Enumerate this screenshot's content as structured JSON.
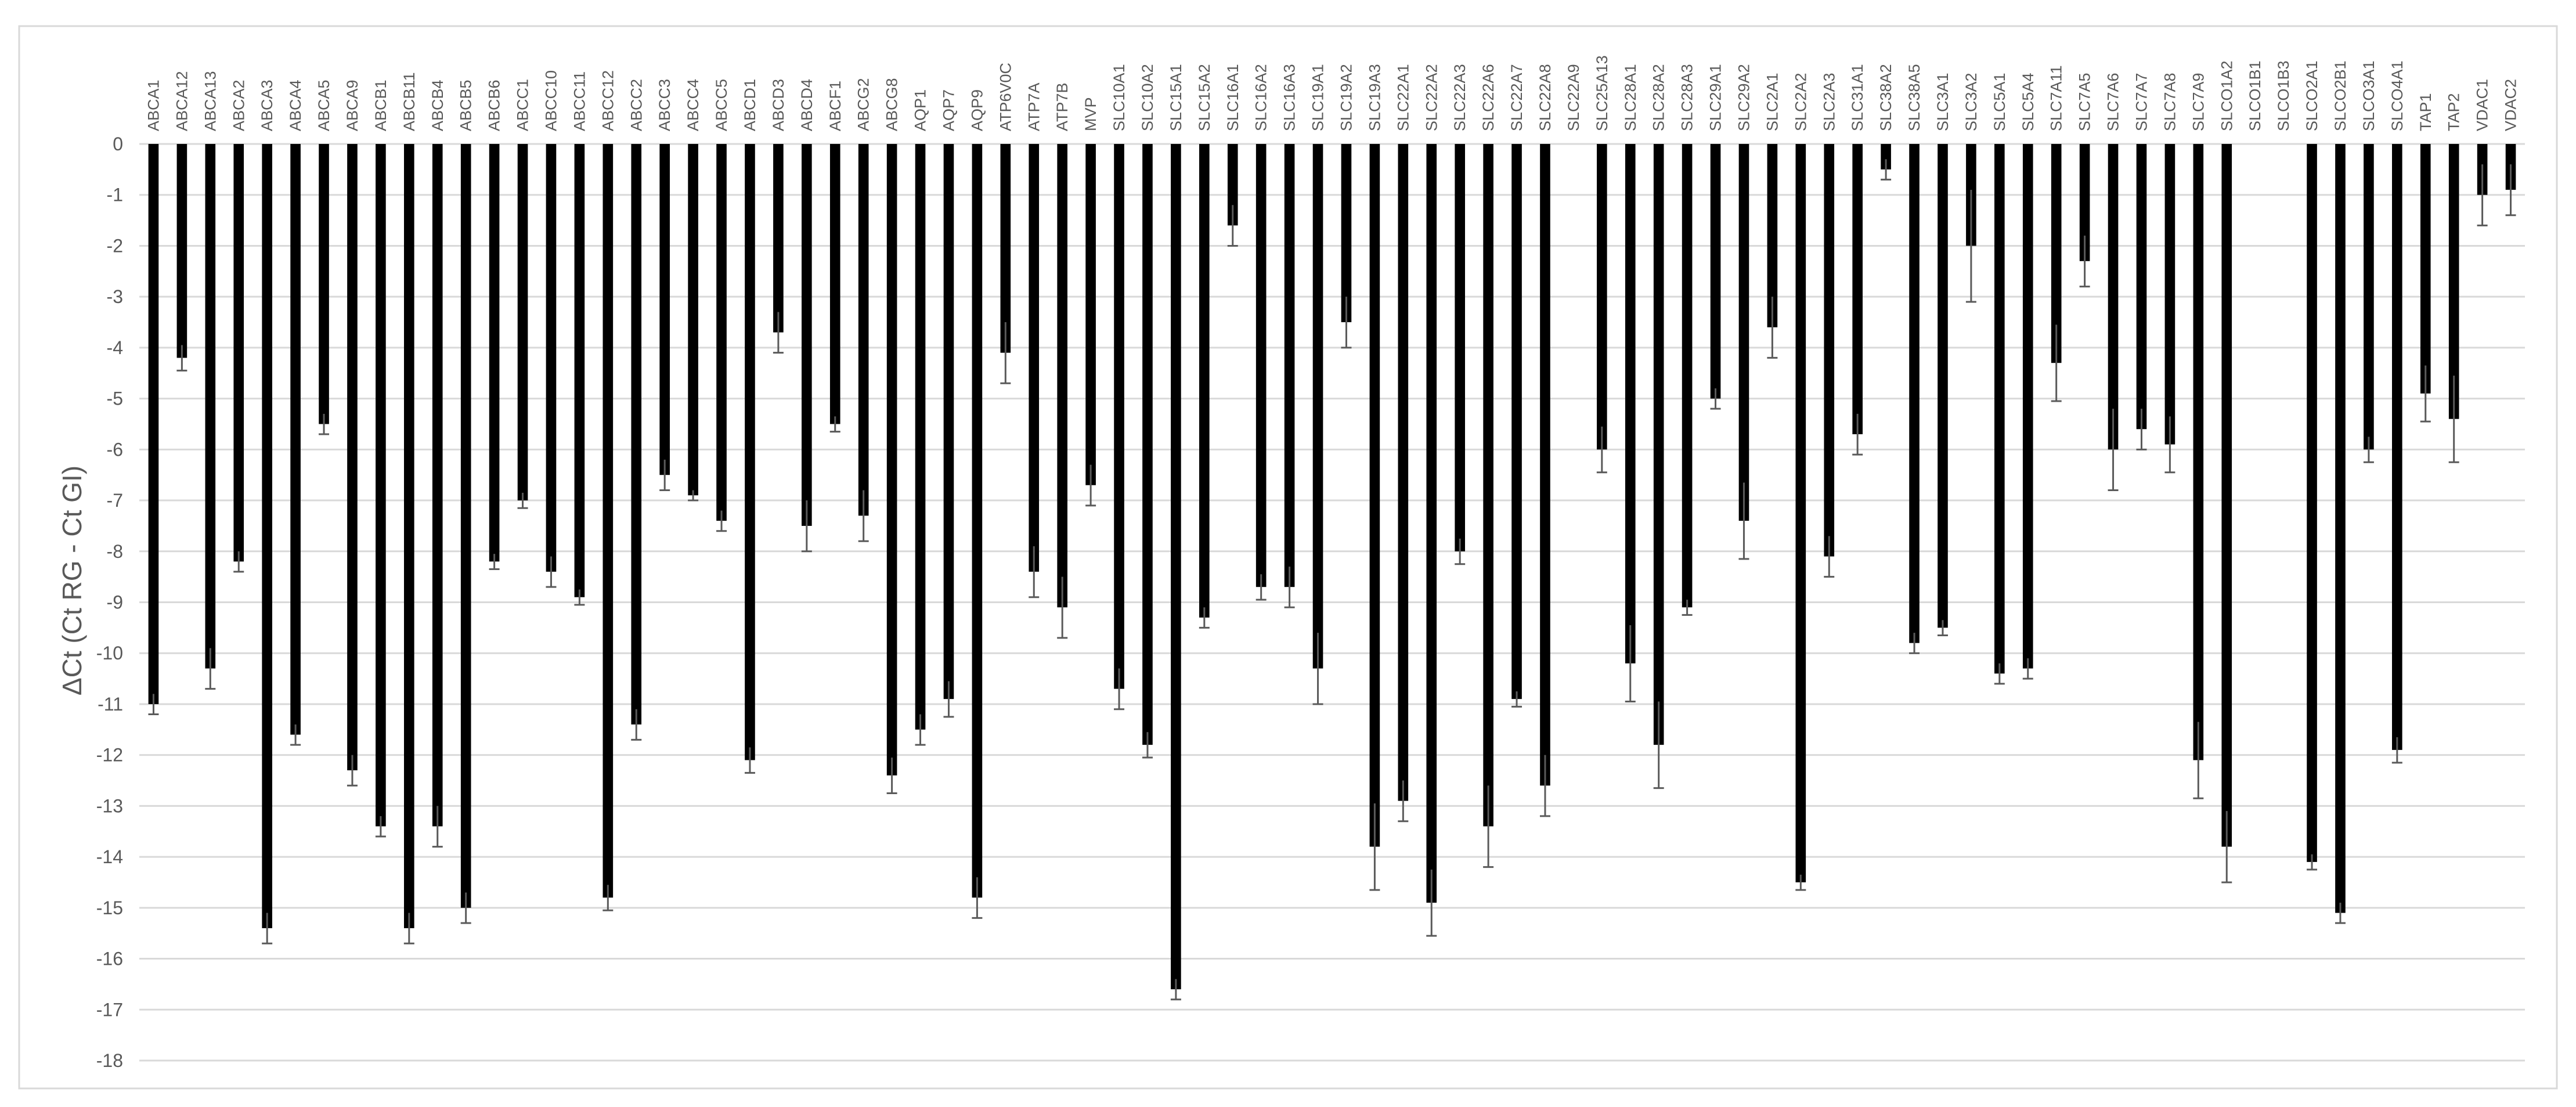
{
  "chart_data": {
    "type": "bar",
    "ylabel": "ΔCt (Ct RG - Ct GI)",
    "ylim": [
      -18,
      0
    ],
    "yticks": [
      0,
      -1,
      -2,
      -3,
      -4,
      -5,
      -6,
      -7,
      -8,
      -9,
      -10,
      -11,
      -12,
      -13,
      -14,
      -15,
      -16,
      -17,
      -18
    ],
    "grid": true,
    "categories": [
      "ABCA1",
      "ABCA12",
      "ABCA13",
      "ABCA2",
      "ABCA3",
      "ABCA4",
      "ABCA5",
      "ABCA9",
      "ABCB1",
      "ABCB11",
      "ABCB4",
      "ABCB5",
      "ABCB6",
      "ABCC1",
      "ABCC10",
      "ABCC11",
      "ABCC12",
      "ABCC2",
      "ABCC3",
      "ABCC4",
      "ABCC5",
      "ABCD1",
      "ABCD3",
      "ABCD4",
      "ABCF1",
      "ABCG2",
      "ABCG8",
      "AQP1",
      "AQP7",
      "AQP9",
      "ATP6V0C",
      "ATP7A",
      "ATP7B",
      "MVP",
      "SLC10A1",
      "SLC10A2",
      "SLC15A1",
      "SLC15A2",
      "SLC16A1",
      "SLC16A2",
      "SLC16A3",
      "SLC19A1",
      "SLC19A2",
      "SLC19A3",
      "SLC22A1",
      "SLC22A2",
      "SLC22A3",
      "SLC22A6",
      "SLC22A7",
      "SLC22A8",
      "SLC22A9",
      "SLC25A13",
      "SLC28A1",
      "SLC28A2",
      "SLC28A3",
      "SLC29A1",
      "SLC29A2",
      "SLC2A1",
      "SLC2A2",
      "SLC2A3",
      "SLC31A1",
      "SLC38A2",
      "SLC38A5",
      "SLC3A1",
      "SLC3A2",
      "SLC5A1",
      "SLC5A4",
      "SLC7A11",
      "SLC7A5",
      "SLC7A6",
      "SLC7A7",
      "SLC7A8",
      "SLC7A9",
      "SLCO1A2",
      "SLCO1B1",
      "SLCO1B3",
      "SLCO2A1",
      "SLCO2B1",
      "SLCO3A1",
      "SLCO4A1",
      "TAP1",
      "TAP2",
      "VDAC1",
      "VDAC2"
    ],
    "values": [
      -11.0,
      -4.2,
      -10.3,
      -8.2,
      -15.4,
      -11.6,
      -5.5,
      -12.3,
      -13.4,
      -15.4,
      -13.4,
      -15.0,
      -8.2,
      -7.0,
      -8.4,
      -8.9,
      -14.8,
      -11.4,
      -6.5,
      -6.9,
      -7.4,
      -12.1,
      -3.7,
      -7.5,
      -5.5,
      -7.3,
      -12.4,
      -11.5,
      -10.9,
      -14.8,
      -4.1,
      -8.4,
      -9.1,
      -6.7,
      -10.7,
      -11.8,
      -16.6,
      -9.3,
      -1.6,
      -8.7,
      -8.7,
      -10.3,
      -3.5,
      -13.8,
      -12.9,
      -14.9,
      -8.0,
      -13.4,
      -10.9,
      -12.6,
      0,
      -6.0,
      -10.2,
      -11.8,
      -9.1,
      -5.0,
      -7.4,
      -3.6,
      -14.5,
      -8.1,
      -5.7,
      -0.5,
      -9.8,
      -9.5,
      -2.0,
      -10.4,
      -10.3,
      -4.3,
      -2.3,
      -6.0,
      -5.6,
      -5.9,
      -12.1,
      -13.8,
      0,
      0,
      -14.1,
      -15.1,
      -6.0,
      -11.9,
      -4.9,
      -5.4,
      -1.0,
      -0.9
    ],
    "errors": [
      0.2,
      0.25,
      0.4,
      0.2,
      0.3,
      0.2,
      0.2,
      0.3,
      0.2,
      0.3,
      0.4,
      0.3,
      0.15,
      0.15,
      0.3,
      0.15,
      0.25,
      0.3,
      0.3,
      0.1,
      0.2,
      0.25,
      0.4,
      0.5,
      0.15,
      0.5,
      0.35,
      0.3,
      0.35,
      0.4,
      0.6,
      0.5,
      0.6,
      0.4,
      0.4,
      0.25,
      0.2,
      0.2,
      0.4,
      0.25,
      0.4,
      0.7,
      0.5,
      0.85,
      0.4,
      0.65,
      0.25,
      0.8,
      0.15,
      0.6,
      0,
      0.45,
      0.75,
      0.85,
      0.15,
      0.2,
      0.75,
      0.6,
      0.15,
      0.4,
      0.4,
      0.2,
      0.2,
      0.15,
      1.1,
      0.2,
      0.2,
      0.75,
      0.5,
      0.8,
      0.4,
      0.55,
      0.75,
      0.7,
      0,
      0,
      0.15,
      0.2,
      0.25,
      0.25,
      0.55,
      0.85,
      0.6,
      0.5
    ]
  }
}
